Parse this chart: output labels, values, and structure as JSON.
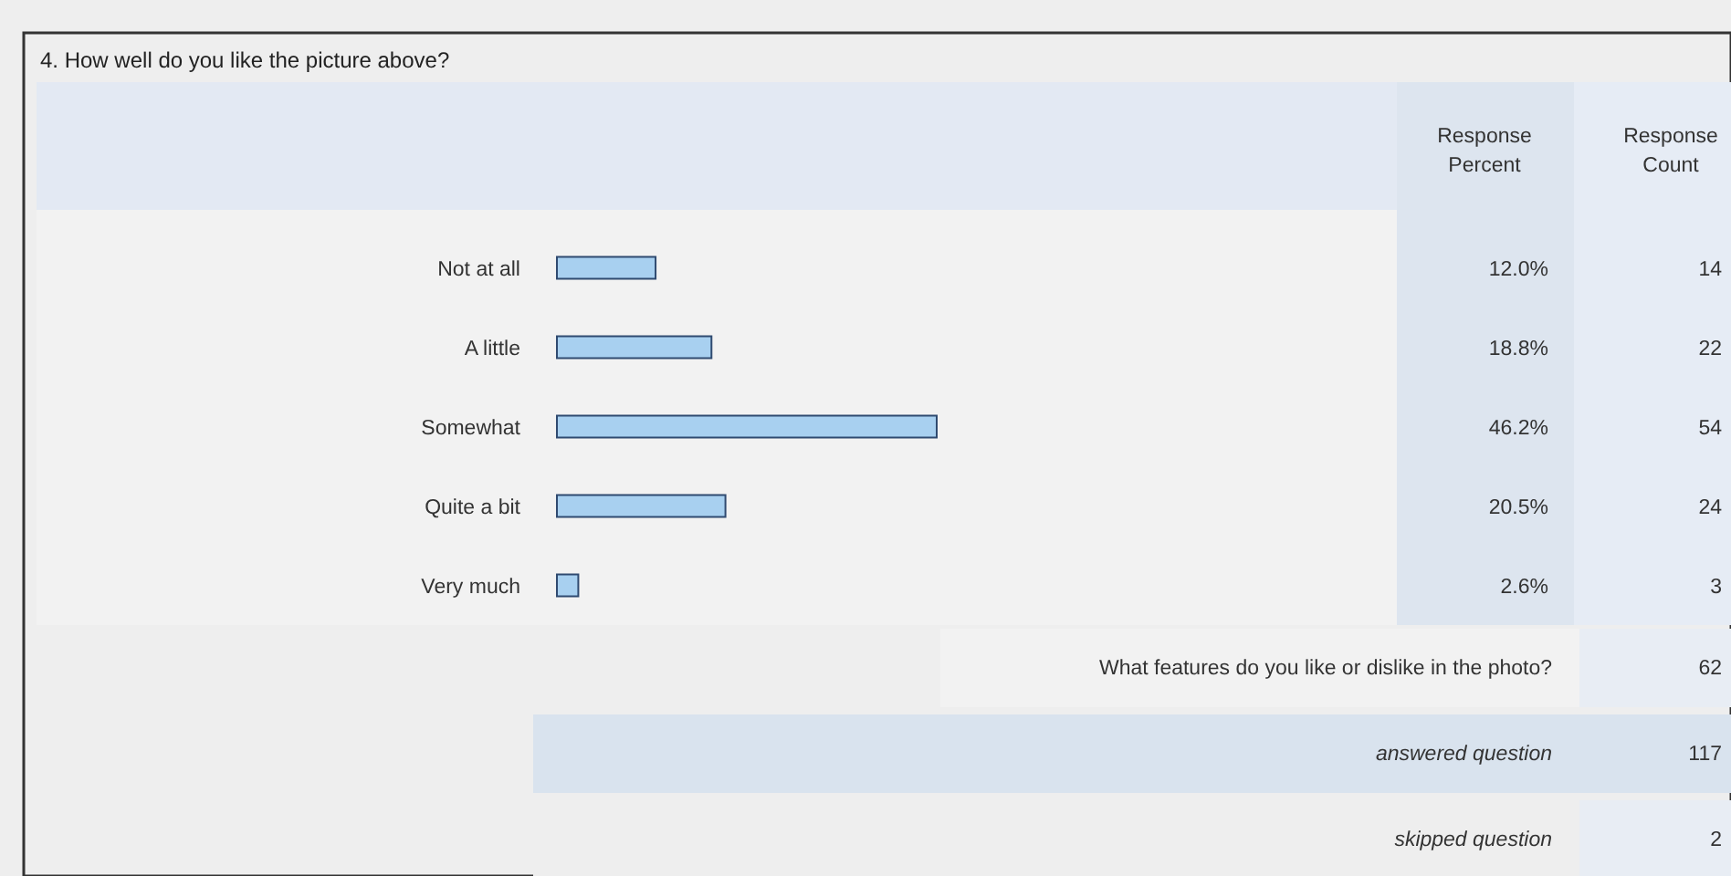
{
  "chart_data": {
    "type": "bar",
    "orientation": "horizontal",
    "title": "4. How well do you like the picture above?",
    "categories": [
      "Not at all",
      "A little",
      "Somewhat",
      "Quite a bit",
      "Very much"
    ],
    "values": [
      12.0,
      18.8,
      46.2,
      20.5,
      2.6
    ],
    "value_labels": [
      "12.0%",
      "18.8%",
      "46.2%",
      "20.5%",
      "2.6%"
    ],
    "color": "#a8d0f0",
    "annotations": [
      "Response Percent",
      "Response Count",
      "14",
      "22",
      "54",
      "24",
      "3",
      "What features do you like or dislike in the photo?",
      "62",
      "answered question",
      "117",
      "skipped question",
      "2"
    ]
  }
}
